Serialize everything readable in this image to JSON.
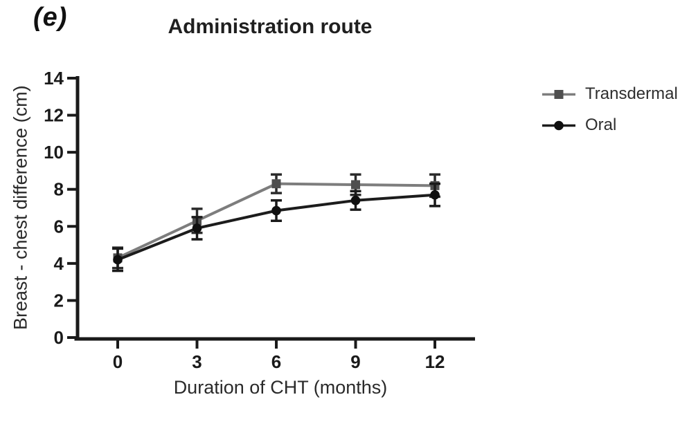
{
  "figure": {
    "panel_label": "(e)",
    "title": "Administration route"
  },
  "chart_data": {
    "type": "line",
    "title": "Administration route",
    "xlabel": "Duration of CHT (months)",
    "ylabel": "Breast - chest difference (cm)",
    "x": [
      0,
      3,
      6,
      9,
      12
    ],
    "xticks": [
      0,
      3,
      6,
      9,
      12
    ],
    "yticks": [
      0,
      2,
      4,
      6,
      8,
      10,
      12,
      14
    ],
    "xlim": [
      0,
      12
    ],
    "ylim": [
      0,
      14
    ],
    "grid": false,
    "legend_position": "right",
    "axis_color": "#1a1a1a",
    "series": [
      {
        "name": "Transdermal",
        "marker": "square",
        "line_color": "#7d7d7d",
        "marker_color": "#4f4f4f",
        "error_color": "#2b2b2b",
        "values": [
          4.3,
          6.3,
          8.3,
          8.25,
          8.2
        ],
        "errors": [
          0.55,
          0.65,
          0.5,
          0.55,
          0.6
        ]
      },
      {
        "name": "Oral",
        "marker": "circle",
        "line_color": "#1c1c1c",
        "marker_color": "#0f0f0f",
        "error_color": "#1a1a1a",
        "values": [
          4.2,
          5.9,
          6.85,
          7.4,
          7.7
        ],
        "errors": [
          0.6,
          0.6,
          0.55,
          0.5,
          0.6
        ]
      }
    ]
  }
}
